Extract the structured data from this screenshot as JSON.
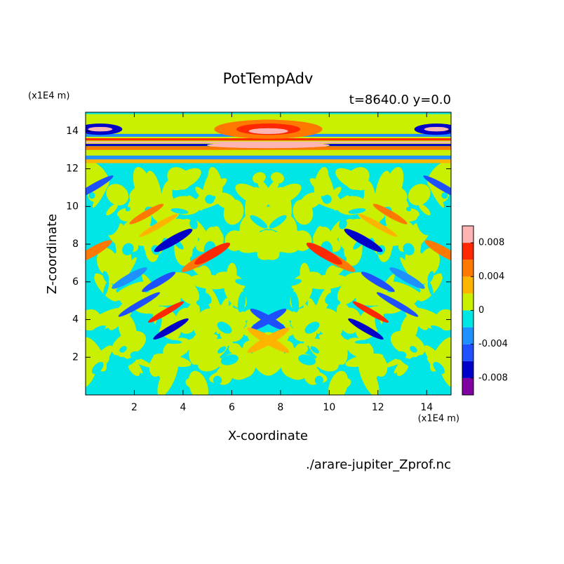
{
  "chart_data": {
    "type": "contour",
    "title": "PotTempAdv",
    "subtitle": "t=8640.0 y=0.0",
    "x_label": "X-coordinate",
    "y_label": "Z-coordinate",
    "x_unit": "(x1E4 m)",
    "y_unit": "(x1E4 m)",
    "footer": "./arare-jupiter_Zprof.nc",
    "xlim": [
      0,
      15
    ],
    "xticks": [
      2,
      4,
      6,
      8,
      10,
      12,
      14
    ],
    "ylim": [
      0,
      15
    ],
    "yticks": [
      2,
      4,
      6,
      8,
      10,
      12,
      14
    ],
    "levels": [
      -0.01,
      -0.008,
      -0.006,
      -0.004,
      -0.002,
      0,
      0.002,
      0.004,
      0.006,
      0.008,
      0.01
    ],
    "colors": [
      "#8000a0",
      "#0000c8",
      "#1e50ff",
      "#1e90ff",
      "#00e6e6",
      "#c8f000",
      "#ffb400",
      "#ff7800",
      "#ff2800",
      "#ffb4b4"
    ],
    "cbticks": [
      0.008,
      0.004,
      0,
      -0.004,
      -0.008
    ]
  }
}
